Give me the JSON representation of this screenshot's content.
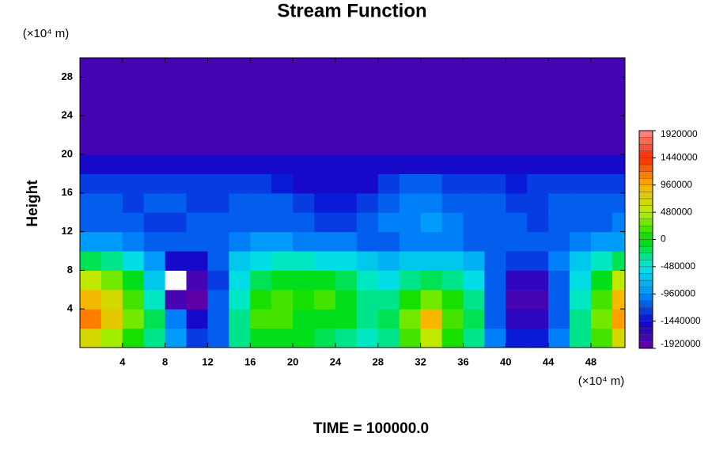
{
  "chart_data": {
    "type": "contour",
    "title": "Stream Function",
    "y_label": "Height",
    "y_unit": "(×10⁴ m)",
    "x_unit": "(×10⁴ m)",
    "footer": "TIME = 100000.0",
    "xlim": [
      0,
      51.2
    ],
    "ylim": [
      0,
      30
    ],
    "xticks": [
      4,
      8,
      12,
      16,
      20,
      24,
      28,
      32,
      36,
      40,
      44,
      48
    ],
    "yticks": [
      4,
      8,
      12,
      16,
      20,
      24,
      28
    ],
    "colorbar_ticks": [
      -1920000,
      -1440000,
      -960000,
      -480000,
      0,
      480000,
      960000,
      1440000,
      1920000
    ],
    "colorbar_colors": [
      "#6a00a0",
      "#0a0ad0",
      "#0090ff",
      "#00e8e0",
      "#00dc00",
      "#b8f000",
      "#ffb000",
      "#ff2a00",
      "#ff8c8c"
    ],
    "x": [
      1,
      3,
      5,
      7,
      9,
      11,
      13,
      15,
      17,
      19,
      21,
      23,
      25,
      27,
      29,
      31,
      33,
      35,
      37,
      39,
      41,
      43,
      45,
      47,
      49,
      51
    ],
    "y": [
      1,
      3,
      5,
      7,
      9,
      11,
      13,
      15,
      17,
      19,
      21,
      23,
      25,
      27,
      29
    ],
    "z": [
      [
        700000,
        400000,
        100000,
        -300000,
        -900000,
        -1300000,
        -1100000,
        -300000,
        0,
        0,
        -100000,
        -200000,
        -300000,
        -400000,
        -300000,
        200000,
        500000,
        100000,
        -300000,
        -1000000,
        -1400000,
        -1400000,
        -1000000,
        -300000,
        200000,
        700000
      ],
      [
        1100000,
        800000,
        300000,
        -200000,
        -1000000,
        -1500000,
        -1200000,
        -300000,
        200000,
        200000,
        0,
        0,
        -100000,
        -300000,
        -200000,
        300000,
        900000,
        200000,
        -200000,
        -1100000,
        -1600000,
        -1600000,
        -1100000,
        -300000,
        300000,
        1000000
      ],
      [
        900000,
        600000,
        200000,
        -400000,
        -1700000,
        -1900000,
        -1200000,
        -400000,
        100000,
        200000,
        100000,
        200000,
        0,
        -300000,
        -300000,
        100000,
        300000,
        100000,
        -300000,
        -1200000,
        -1700000,
        -1700000,
        -1200000,
        -400000,
        200000,
        900000
      ],
      [
        500000,
        300000,
        0,
        -700000,
        -2000000,
        -1800000,
        -1300000,
        -600000,
        -200000,
        0,
        0,
        -100000,
        -200000,
        -400000,
        -500000,
        -300000,
        -200000,
        -300000,
        -500000,
        -1200000,
        -1600000,
        -1600000,
        -1200000,
        -600000,
        0,
        500000
      ],
      [
        -200000,
        -300000,
        -500000,
        -900000,
        -1500000,
        -1500000,
        -1100000,
        -700000,
        -500000,
        -400000,
        -400000,
        -500000,
        -600000,
        -700000,
        -800000,
        -700000,
        -700000,
        -700000,
        -800000,
        -1100000,
        -1300000,
        -1300000,
        -1000000,
        -700000,
        -400000,
        -200000
      ],
      [
        -900000,
        -900000,
        -1000000,
        -1100000,
        -1200000,
        -1200000,
        -1100000,
        -1000000,
        -900000,
        -900000,
        -1000000,
        -1000000,
        -1000000,
        -1100000,
        -1100000,
        -1000000,
        -1000000,
        -1000000,
        -1100000,
        -1100000,
        -1200000,
        -1200000,
        -1100000,
        -1000000,
        -900000,
        -900000
      ],
      [
        -1100000,
        -1100000,
        -1200000,
        -1300000,
        -1300000,
        -1200000,
        -1200000,
        -1200000,
        -1200000,
        -1100000,
        -1200000,
        -1300000,
        -1300000,
        -1200000,
        -1000000,
        -1000000,
        -950000,
        -1000000,
        -1100000,
        -1200000,
        -1200000,
        -1300000,
        -1200000,
        -1100000,
        -1100000,
        -1000000
      ],
      [
        -1200000,
        -1200000,
        -1300000,
        -1200000,
        -1200000,
        -1300000,
        -1300000,
        -1200000,
        -1200000,
        -1200000,
        -1300000,
        -1400000,
        -1400000,
        -1300000,
        -1100000,
        -1000000,
        -1000000,
        -1100000,
        -1200000,
        -1200000,
        -1300000,
        -1300000,
        -1200000,
        -1200000,
        -1200000,
        -1100000
      ],
      [
        -1300000,
        -1300000,
        -1300000,
        -1300000,
        -1300000,
        -1300000,
        -1300000,
        -1300000,
        -1300000,
        -1400000,
        -1450000,
        -1500000,
        -1550000,
        -1450000,
        -1300000,
        -1200000,
        -1200000,
        -1300000,
        -1300000,
        -1300000,
        -1350000,
        -1300000,
        -1300000,
        -1300000,
        -1300000,
        -1300000
      ],
      [
        -1500000,
        -1500000,
        -1500000,
        -1500000,
        -1500000,
        -1500000,
        -1500000,
        -1500000,
        -1500000,
        -1500000,
        -1500000,
        -1550000,
        -1550000,
        -1500000,
        -1500000,
        -1500000,
        -1500000,
        -1500000,
        -1500000,
        -1500000,
        -1500000,
        -1500000,
        -1500000,
        -1500000,
        -1500000,
        -1500000
      ],
      [
        -1700000,
        -1700000,
        -1700000,
        -1700000,
        -1700000,
        -1700000,
        -1700000,
        -1700000,
        -1700000,
        -1700000,
        -1700000,
        -1700000,
        -1700000,
        -1700000,
        -1700000,
        -1700000,
        -1700000,
        -1700000,
        -1700000,
        -1700000,
        -1700000,
        -1700000,
        -1700000,
        -1700000,
        -1700000,
        -1700000
      ],
      [
        -1750000,
        -1750000,
        -1750000,
        -1750000,
        -1750000,
        -1750000,
        -1750000,
        -1750000,
        -1750000,
        -1750000,
        -1750000,
        -1750000,
        -1750000,
        -1750000,
        -1750000,
        -1750000,
        -1750000,
        -1750000,
        -1750000,
        -1750000,
        -1750000,
        -1750000,
        -1750000,
        -1750000,
        -1750000,
        -1750000
      ],
      [
        -1750000,
        -1750000,
        -1750000,
        -1750000,
        -1750000,
        -1750000,
        -1750000,
        -1750000,
        -1750000,
        -1750000,
        -1750000,
        -1750000,
        -1750000,
        -1750000,
        -1750000,
        -1750000,
        -1750000,
        -1750000,
        -1750000,
        -1750000,
        -1750000,
        -1750000,
        -1750000,
        -1750000,
        -1750000,
        -1750000
      ],
      [
        -1750000,
        -1750000,
        -1750000,
        -1750000,
        -1750000,
        -1750000,
        -1750000,
        -1750000,
        -1750000,
        -1750000,
        -1750000,
        -1750000,
        -1750000,
        -1750000,
        -1750000,
        -1750000,
        -1750000,
        -1750000,
        -1750000,
        -1750000,
        -1750000,
        -1750000,
        -1750000,
        -1750000,
        -1750000,
        -1750000
      ],
      [
        -1750000,
        -1750000,
        -1750000,
        -1750000,
        -1750000,
        -1750000,
        -1750000,
        -1750000,
        -1750000,
        -1750000,
        -1750000,
        -1750000,
        -1750000,
        -1750000,
        -1750000,
        -1750000,
        -1750000,
        -1750000,
        -1750000,
        -1750000,
        -1750000,
        -1750000,
        -1750000,
        -1750000,
        -1750000,
        -1750000
      ]
    ]
  }
}
